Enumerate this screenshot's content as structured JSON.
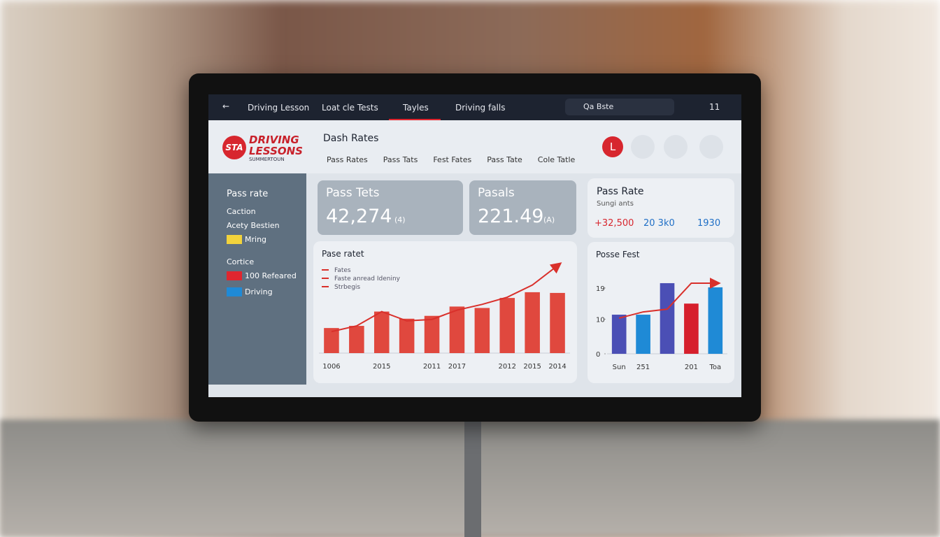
{
  "nav": {
    "items": [
      "Driving Lesson",
      "Loat cle Tests",
      "Tayles",
      "Driving falls"
    ],
    "search": "Qa Bste",
    "badge": "11"
  },
  "logo": {
    "mark": "STA",
    "line1": "DRIVING",
    "line2": "LESSONS",
    "tagline": "SUMMERTOUN"
  },
  "header": {
    "title": "Dash Rates",
    "tabs": [
      "Pass Rates",
      "Pass Tats",
      "Fest Fates",
      "Pass Tate",
      "Cole Tatle"
    ],
    "avatar": "L"
  },
  "sidebar": {
    "heading": "Pass rate",
    "items": [
      "Caction",
      "Acety Bestien",
      "Mring"
    ],
    "section": "Cortice",
    "section_items": [
      "100 Refeared",
      "Driving"
    ]
  },
  "stats": [
    {
      "label": "Pass Tets",
      "value": "42,274",
      "suffix": "(4)"
    },
    {
      "label": "Pasals",
      "value": "221.49",
      "suffix": "(A)"
    },
    {
      "label": "Pass Rate",
      "sub": "Sungi ants",
      "figures": [
        "+32,500",
        "20 3k0",
        "1930"
      ]
    }
  ],
  "chart_data": [
    {
      "type": "bar",
      "title": "Pase ratet",
      "legend": [
        "Fates",
        "Faste anread Ideniny",
        "Strbegis"
      ],
      "categories": [
        "1006",
        null,
        "2015",
        null,
        "2011",
        "2017",
        null,
        "2012",
        "2015",
        "2014"
      ],
      "values": [
        35,
        38,
        58,
        48,
        52,
        65,
        63,
        77,
        85,
        84
      ],
      "color": "#e0483e",
      "line_values": [
        30,
        38,
        58,
        45,
        47,
        60,
        68,
        78,
        95,
        122
      ],
      "line_color": "#d9302b"
    },
    {
      "type": "bar",
      "title": "Posse Fest",
      "categories": [
        "Sun",
        "251",
        null,
        "201",
        "Toa"
      ],
      "values": [
        11.3,
        11.3,
        20.4,
        14.5,
        19.2
      ],
      "colors": [
        "#4b4fb5",
        "#1f8ad6",
        "#4b4fb5",
        "#d61f2c",
        "#1f8ad6"
      ],
      "line_values": [
        10.3,
        12.1,
        12.9,
        20.4,
        20.4
      ],
      "line_color": "#d9302b",
      "ylim": [
        0,
        21
      ],
      "yticks": [
        0,
        10,
        19
      ]
    }
  ]
}
